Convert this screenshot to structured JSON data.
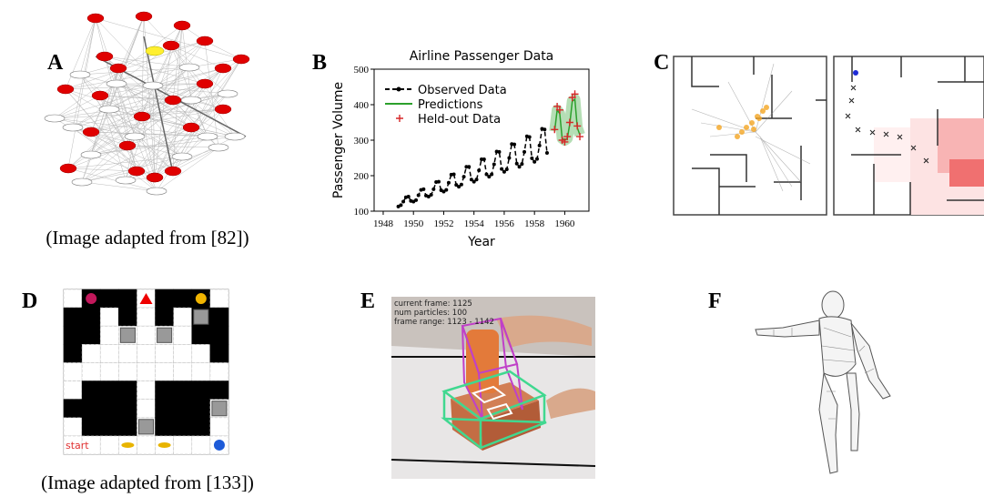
{
  "labels": [
    "A",
    "B",
    "C",
    "D",
    "E",
    "F"
  ],
  "captions": {
    "A": "(Image adapted from [82])",
    "D": "(Image adapted from [133])"
  },
  "panel_d": {
    "start_label": "start"
  },
  "panel_e": {
    "overlay": [
      "current frame: 1125",
      "num particles: 100",
      "frame range: 1123 - 1142"
    ]
  },
  "chart_data": {
    "type": "line",
    "title": "Airline Passenger Data",
    "xlabel": "Year",
    "ylabel": "Passenger Volume",
    "xlim": [
      1947.4,
      1961.6
    ],
    "xticks": [
      1948,
      1950,
      1952,
      1954,
      1956,
      1958,
      1960
    ],
    "ylim": [
      100,
      500
    ],
    "yticks": [
      100,
      200,
      300,
      400,
      500
    ],
    "legend": "upper left",
    "series": [
      {
        "name": "Observed Data",
        "color": "#000000",
        "style": "line-markers",
        "linestyle": "dashed",
        "x": [
          1949.0,
          1949.17,
          1949.33,
          1949.5,
          1949.67,
          1949.83,
          1950.0,
          1950.17,
          1950.33,
          1950.5,
          1950.67,
          1950.83,
          1951.0,
          1951.17,
          1951.33,
          1951.5,
          1951.67,
          1951.83,
          1952.0,
          1952.17,
          1952.33,
          1952.5,
          1952.67,
          1952.83,
          1953.0,
          1953.17,
          1953.33,
          1953.5,
          1953.67,
          1953.83,
          1954.0,
          1954.17,
          1954.33,
          1954.5,
          1954.67,
          1954.83,
          1955.0,
          1955.17,
          1955.33,
          1955.5,
          1955.67,
          1955.83,
          1956.0,
          1956.17,
          1956.33,
          1956.5,
          1956.67,
          1956.83,
          1957.0,
          1957.17,
          1957.33,
          1957.5,
          1957.67,
          1957.83,
          1958.0,
          1958.17,
          1958.33,
          1958.5,
          1958.67,
          1958.83
        ],
        "values": [
          113,
          117,
          127,
          139,
          141,
          129,
          127,
          131,
          145,
          160,
          162,
          144,
          141,
          146,
          162,
          182,
          183,
          159,
          155,
          160,
          180,
          203,
          204,
          174,
          169,
          175,
          197,
          225,
          225,
          189,
          183,
          189,
          215,
          246,
          246,
          204,
          197,
          204,
          232,
          268,
          267,
          219,
          211,
          218,
          250,
          289,
          288,
          234,
          225,
          233,
          267,
          311,
          309,
          249,
          239,
          247,
          285,
          332,
          330,
          264
        ]
      },
      {
        "name": "Predictions",
        "color": "#2ca02c",
        "style": "line",
        "x": [
          1959.33,
          1959.5,
          1959.67,
          1959.83,
          1960.0,
          1960.17,
          1960.33,
          1960.5,
          1960.67,
          1960.83,
          1961.0
        ],
        "values": [
          325,
          385,
          375,
          305,
          300,
          305,
          345,
          410,
          415,
          335,
          315
        ]
      },
      {
        "name": "Held-out Data",
        "color": "#d62728",
        "style": "plus",
        "x": [
          1959.33,
          1959.5,
          1959.67,
          1959.83,
          1960.0,
          1960.17,
          1960.33,
          1960.5,
          1960.67,
          1960.83,
          1961.0
        ],
        "values": [
          330,
          395,
          385,
          300,
          295,
          310,
          350,
          420,
          430,
          340,
          310
        ]
      }
    ]
  }
}
